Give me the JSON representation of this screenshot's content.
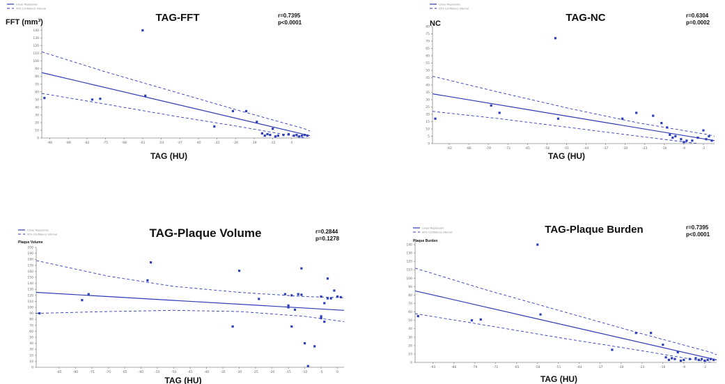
{
  "chart_data": [
    {
      "type": "scatter",
      "title": "TAG-FFT",
      "ylabel": "FFT (mm³)",
      "xlabel": "TAG (HU)",
      "stat_r": "r=0.7395",
      "stat_p": "p<0.0001",
      "legend": [
        "Linear Regression",
        "95% Confidence Interval"
      ],
      "xlim": [
        -99,
        2
      ],
      "ylim": [
        0,
        145
      ],
      "xticks": [
        -96,
        -89,
        -82,
        -75,
        -68,
        -61,
        -54,
        -47,
        -40,
        -33,
        -26,
        -19,
        -12,
        -5
      ],
      "yticks": [
        0,
        10,
        20,
        30,
        40,
        50,
        60,
        70,
        80,
        90,
        100,
        110,
        120,
        130,
        140
      ],
      "fit": {
        "x": [
          -99,
          2
        ],
        "y": [
          85,
          3
        ]
      },
      "ci_upper": {
        "x": [
          -99,
          -75,
          -50,
          -25,
          0,
          2
        ],
        "y": [
          112,
          86,
          61,
          36,
          12,
          9
        ]
      },
      "ci_lower": {
        "x": [
          -99,
          -75,
          -50,
          -25,
          0,
          2
        ],
        "y": [
          58,
          44,
          29,
          15,
          0,
          -3
        ]
      },
      "points": [
        [
          -98,
          52
        ],
        [
          -80,
          50
        ],
        [
          -77,
          51
        ],
        [
          -61,
          140
        ],
        [
          -60,
          55
        ],
        [
          -34,
          15
        ],
        [
          -27,
          35
        ],
        [
          -22,
          35
        ],
        [
          -18,
          21
        ],
        [
          -16,
          6
        ],
        [
          -15,
          3
        ],
        [
          -14,
          5
        ],
        [
          -13,
          4
        ],
        [
          -12,
          12
        ],
        [
          -11,
          2
        ],
        [
          -10,
          3
        ],
        [
          -8,
          4
        ],
        [
          -6,
          5
        ],
        [
          -4,
          3
        ],
        [
          -3,
          4
        ],
        [
          -2,
          2
        ],
        [
          -1,
          3
        ],
        [
          0,
          4
        ],
        [
          1,
          3
        ]
      ]
    },
    {
      "type": "scatter",
      "title": "TAG-NC",
      "ylabel": "NC",
      "xlabel": "TAG (HU)",
      "stat_r": "r=0.6304",
      "stat_p": "p=0.0002",
      "legend": [
        "Linear Regression",
        "95% Confidence Interval"
      ],
      "xlim": [
        -99,
        2
      ],
      "ylim": [
        0,
        80
      ],
      "xticks": [
        -93,
        -86,
        -79,
        -72,
        -65,
        -58,
        -51,
        -44,
        -37,
        -30,
        -23,
        -16,
        -9,
        -2
      ],
      "yticks": [
        0,
        5,
        10,
        15,
        20,
        25,
        30,
        35,
        40,
        45,
        50,
        55,
        60,
        65,
        70,
        75,
        80
      ],
      "fit": {
        "x": [
          -99,
          2
        ],
        "y": [
          34,
          2
        ]
      },
      "ci_upper": {
        "x": [
          -99,
          -75,
          -50,
          -25,
          0,
          2
        ],
        "y": [
          46,
          35,
          24,
          14,
          6,
          5
        ]
      },
      "ci_lower": {
        "x": [
          -99,
          -75,
          -50,
          -25,
          0,
          2
        ],
        "y": [
          22,
          17,
          11,
          5,
          -1,
          -3
        ]
      },
      "points": [
        [
          -98,
          17
        ],
        [
          -78,
          26
        ],
        [
          -75,
          21
        ],
        [
          -55,
          72
        ],
        [
          -54,
          17
        ],
        [
          -31,
          17
        ],
        [
          -26,
          21
        ],
        [
          -20,
          19
        ],
        [
          -17,
          14
        ],
        [
          -15,
          11
        ],
        [
          -14,
          6
        ],
        [
          -13,
          4
        ],
        [
          -12,
          5
        ],
        [
          -10,
          3
        ],
        [
          -9,
          1
        ],
        [
          -8,
          2
        ],
        [
          -6,
          2
        ],
        [
          -4,
          4
        ],
        [
          -2,
          9
        ],
        [
          -1,
          3
        ],
        [
          0,
          5
        ],
        [
          1,
          2
        ]
      ]
    },
    {
      "type": "scatter",
      "title": "TAG-Plaque Volume",
      "ylabel": "Plaque Volume",
      "xlabel": "TAG (HU)",
      "stat_r": "r=0.2844",
      "stat_p": "p=0.1278",
      "legend": [
        "Linear Regression",
        "95% Confidence Interval"
      ],
      "xlim": [
        -92,
        2
      ],
      "ylim": [
        0,
        200
      ],
      "xticks": [
        -85,
        -80,
        -75,
        -70,
        -65,
        -60,
        -55,
        -50,
        -45,
        -40,
        -35,
        -30,
        -25,
        -20,
        -15,
        -10,
        -5,
        0
      ],
      "yticks": [
        0,
        10,
        20,
        30,
        40,
        50,
        60,
        70,
        80,
        90,
        100,
        110,
        120,
        130,
        140,
        150,
        160,
        170,
        180,
        190,
        200
      ],
      "fit": {
        "x": [
          -92,
          2
        ],
        "y": [
          125,
          95
        ]
      },
      "ci_upper": {
        "x": [
          -92,
          -70,
          -50,
          -30,
          -10,
          2
        ],
        "y": [
          178,
          152,
          135,
          125,
          118,
          116
        ]
      },
      "ci_lower": {
        "x": [
          -92,
          -70,
          -50,
          -30,
          -10,
          2
        ],
        "y": [
          90,
          93,
          95,
          93,
          85,
          76
        ]
      },
      "points": [
        [
          -91,
          90
        ],
        [
          -78,
          112
        ],
        [
          -76,
          122
        ],
        [
          -57,
          175
        ],
        [
          -58,
          145
        ],
        [
          -32,
          68
        ],
        [
          -30,
          161
        ],
        [
          -24,
          114
        ],
        [
          -16,
          122
        ],
        [
          -15,
          100
        ],
        [
          -15,
          103
        ],
        [
          -14,
          68
        ],
        [
          -14,
          120
        ],
        [
          -13,
          96
        ],
        [
          -12,
          122
        ],
        [
          -11,
          121
        ],
        [
          -11,
          165
        ],
        [
          -10,
          40
        ],
        [
          -9,
          2
        ],
        [
          -7,
          35
        ],
        [
          -5,
          118
        ],
        [
          -5,
          85
        ],
        [
          -5,
          82
        ],
        [
          -4,
          107
        ],
        [
          -4,
          76
        ],
        [
          -3,
          148
        ],
        [
          -3,
          115
        ],
        [
          -2,
          115
        ],
        [
          -1,
          128
        ],
        [
          0,
          118
        ],
        [
          1,
          117
        ]
      ]
    },
    {
      "type": "scatter",
      "title": "TAG-Plaque Burden",
      "ylabel": "Plaque Burden",
      "xlabel": "TAG (HU)",
      "stat_r": "r=0.7395",
      "stat_p": "p<0.0001",
      "legend": [
        "Linear Regression",
        "95% Confidence Interval"
      ],
      "xlim": [
        -99,
        2
      ],
      "ylim": [
        0,
        145
      ],
      "xticks": [
        -93,
        -86,
        -79,
        -72,
        -65,
        -58,
        -51,
        -44,
        -37,
        -30,
        -23,
        -16,
        -9,
        -2
      ],
      "yticks": [
        0,
        10,
        20,
        30,
        40,
        50,
        60,
        70,
        80,
        90,
        100,
        110,
        120,
        130,
        140
      ],
      "fit": {
        "x": [
          -99,
          2
        ],
        "y": [
          85,
          3
        ]
      },
      "ci_upper": {
        "x": [
          -99,
          -75,
          -50,
          -25,
          0,
          2
        ],
        "y": [
          112,
          86,
          61,
          36,
          12,
          9
        ]
      },
      "ci_lower": {
        "x": [
          -99,
          -75,
          -50,
          -25,
          0,
          2
        ],
        "y": [
          58,
          44,
          29,
          15,
          0,
          -3
        ]
      },
      "points": [
        [
          -98,
          55
        ],
        [
          -80,
          50
        ],
        [
          -77,
          51
        ],
        [
          -58,
          140
        ],
        [
          -57,
          57
        ],
        [
          -33,
          15
        ],
        [
          -25,
          35
        ],
        [
          -20,
          35
        ],
        [
          -16,
          21
        ],
        [
          -15,
          6
        ],
        [
          -14,
          3
        ],
        [
          -13,
          5
        ],
        [
          -12,
          4
        ],
        [
          -11,
          12
        ],
        [
          -10,
          2
        ],
        [
          -9,
          3
        ],
        [
          -7,
          4
        ],
        [
          -5,
          5
        ],
        [
          -4,
          3
        ],
        [
          -3,
          4
        ],
        [
          -2,
          2
        ],
        [
          -1,
          3
        ],
        [
          0,
          4
        ],
        [
          1,
          3
        ]
      ]
    }
  ]
}
